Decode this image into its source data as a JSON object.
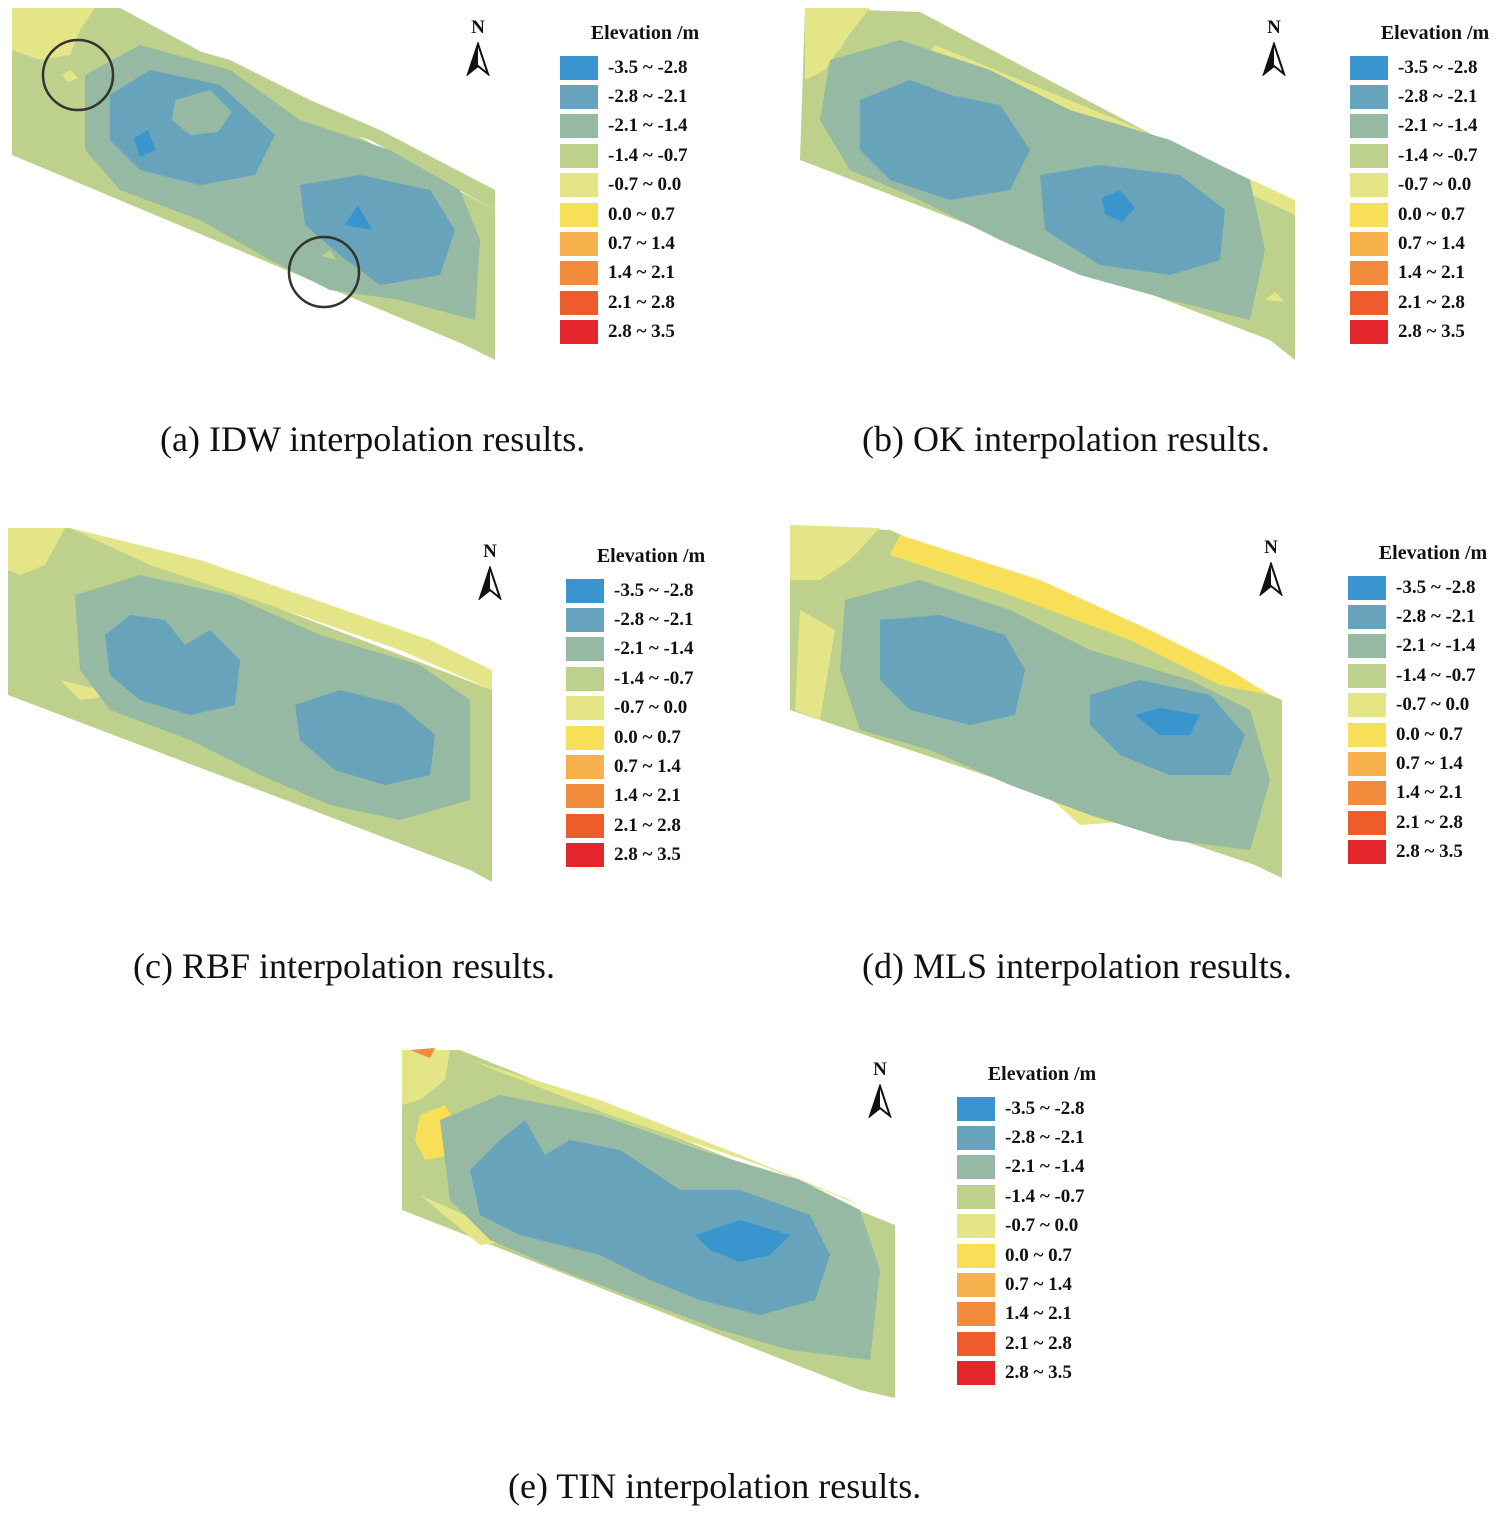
{
  "legend": {
    "title": "Elevation /m",
    "classes": [
      {
        "label": "-3.5 ~ -2.8",
        "color": "#3a95cf"
      },
      {
        "label": "-2.8 ~ -2.1",
        "color": "#67a3bb"
      },
      {
        "label": "-2.1 ~ -1.4",
        "color": "#95b9a2"
      },
      {
        "label": "-1.4 ~ -0.7",
        "color": "#bdd08c"
      },
      {
        "label": "-0.7 ~ 0.0",
        "color": "#e4e586"
      },
      {
        "label": "0.0 ~ 0.7",
        "color": "#f8df58"
      },
      {
        "label": "0.7 ~ 1.4",
        "color": "#f6b14d"
      },
      {
        "label": "1.4 ~ 2.1",
        "color": "#f38b3c"
      },
      {
        "label": "2.1 ~ 2.8",
        "color": "#ee5c2c"
      },
      {
        "label": "2.8 ~ 3.5",
        "color": "#e3252c"
      }
    ]
  },
  "north_label": "N",
  "panels": [
    {
      "id": "a",
      "caption": "(a) IDW interpolation results."
    },
    {
      "id": "b",
      "caption": "(b) OK interpolation results."
    },
    {
      "id": "c",
      "caption": "(c) RBF interpolation results."
    },
    {
      "id": "d",
      "caption": "(d) MLS interpolation results."
    },
    {
      "id": "e",
      "caption": "(e) TIN interpolation results."
    }
  ]
}
